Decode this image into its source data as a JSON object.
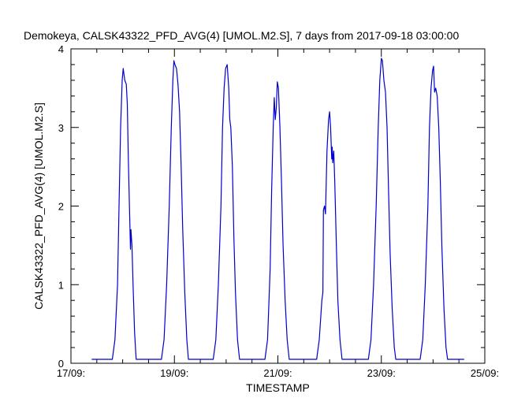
{
  "chart_data": {
    "type": "line",
    "title": "Demokeya, CALSK43322_PFD_AVG(4) [UMOL.M2.S], 7 days from  2017-09-18 03:00:00",
    "xlabel": "TIMESTAMP",
    "ylabel": "CALSK43322_PFD_AVG(4) [UMOL.M2.S]",
    "x_ticks": [
      {
        "day": 0,
        "label": "17/09:"
      },
      {
        "day": 2,
        "label": "19/09:"
      },
      {
        "day": 4,
        "label": "21/09:"
      },
      {
        "day": 6,
        "label": "23/09:"
      },
      {
        "day": 8,
        "label": "25/09:"
      }
    ],
    "x_minor_per_major": 4,
    "xlim": [
      0,
      8
    ],
    "ylim": [
      0,
      4
    ],
    "y_ticks": [
      0,
      1,
      2,
      3,
      4
    ],
    "y_minor_step": 0.2,
    "grid": false,
    "line_color": "#0000cc",
    "series": [
      {
        "points": [
          [
            0.4,
            0.05
          ],
          [
            0.8,
            0.05
          ],
          [
            0.85,
            0.3
          ],
          [
            0.9,
            1.0
          ],
          [
            0.93,
            2.0
          ],
          [
            0.96,
            3.0
          ],
          [
            0.99,
            3.6
          ],
          [
            1.01,
            3.75
          ],
          [
            1.04,
            3.6
          ],
          [
            1.07,
            3.55
          ],
          [
            1.09,
            3.3
          ],
          [
            1.11,
            2.6
          ],
          [
            1.13,
            2.0
          ],
          [
            1.15,
            1.45
          ],
          [
            1.16,
            1.7
          ],
          [
            1.18,
            1.5
          ],
          [
            1.2,
            1.0
          ],
          [
            1.23,
            0.4
          ],
          [
            1.26,
            0.05
          ],
          [
            1.75,
            0.05
          ],
          [
            1.8,
            0.3
          ],
          [
            1.85,
            1.0
          ],
          [
            1.9,
            2.0
          ],
          [
            1.94,
            3.0
          ],
          [
            1.97,
            3.6
          ],
          [
            1.99,
            3.85
          ],
          [
            2.01,
            3.8
          ],
          [
            2.04,
            3.75
          ],
          [
            2.07,
            3.55
          ],
          [
            2.1,
            3.2
          ],
          [
            2.13,
            2.5
          ],
          [
            2.16,
            1.7
          ],
          [
            2.2,
            0.9
          ],
          [
            2.24,
            0.3
          ],
          [
            2.27,
            0.05
          ],
          [
            2.75,
            0.05
          ],
          [
            2.8,
            0.3
          ],
          [
            2.85,
            1.0
          ],
          [
            2.9,
            2.0
          ],
          [
            2.93,
            3.0
          ],
          [
            2.96,
            3.5
          ],
          [
            2.99,
            3.75
          ],
          [
            3.02,
            3.8
          ],
          [
            3.05,
            3.5
          ],
          [
            3.07,
            3.1
          ],
          [
            3.09,
            3.0
          ],
          [
            3.12,
            2.5
          ],
          [
            3.15,
            1.6
          ],
          [
            3.18,
            0.9
          ],
          [
            3.22,
            0.3
          ],
          [
            3.26,
            0.05
          ],
          [
            3.75,
            0.05
          ],
          [
            3.8,
            0.3
          ],
          [
            3.85,
            1.2
          ],
          [
            3.88,
            2.2
          ],
          [
            3.91,
            3.0
          ],
          [
            3.93,
            3.38
          ],
          [
            3.95,
            3.1
          ],
          [
            3.97,
            3.25
          ],
          [
            3.99,
            3.58
          ],
          [
            4.01,
            3.5
          ],
          [
            4.04,
            3.0
          ],
          [
            4.07,
            2.3
          ],
          [
            4.1,
            1.5
          ],
          [
            4.14,
            0.8
          ],
          [
            4.18,
            0.3
          ],
          [
            4.22,
            0.05
          ],
          [
            4.75,
            0.05
          ],
          [
            4.8,
            0.3
          ],
          [
            4.85,
            0.8
          ],
          [
            4.87,
            0.9
          ],
          [
            4.88,
            1.95
          ],
          [
            4.9,
            2.0
          ],
          [
            4.92,
            1.9
          ],
          [
            4.95,
            2.7
          ],
          [
            4.98,
            3.1
          ],
          [
            5.0,
            3.2
          ],
          [
            5.02,
            3.0
          ],
          [
            5.04,
            2.6
          ],
          [
            5.05,
            2.75
          ],
          [
            5.06,
            2.55
          ],
          [
            5.08,
            2.7
          ],
          [
            5.1,
            2.3
          ],
          [
            5.13,
            1.5
          ],
          [
            5.16,
            0.8
          ],
          [
            5.2,
            0.3
          ],
          [
            5.24,
            0.05
          ],
          [
            5.75,
            0.05
          ],
          [
            5.8,
            0.3
          ],
          [
            5.85,
            1.0
          ],
          [
            5.9,
            2.0
          ],
          [
            5.94,
            3.0
          ],
          [
            5.97,
            3.6
          ],
          [
            6.0,
            3.88
          ],
          [
            6.02,
            3.85
          ],
          [
            6.05,
            3.6
          ],
          [
            6.08,
            3.45
          ],
          [
            6.11,
            3.0
          ],
          [
            6.14,
            2.2
          ],
          [
            6.17,
            1.4
          ],
          [
            6.21,
            0.7
          ],
          [
            6.25,
            0.2
          ],
          [
            6.28,
            0.05
          ],
          [
            6.75,
            0.05
          ],
          [
            6.8,
            0.3
          ],
          [
            6.85,
            1.0
          ],
          [
            6.9,
            2.0
          ],
          [
            6.93,
            3.0
          ],
          [
            6.96,
            3.5
          ],
          [
            6.99,
            3.72
          ],
          [
            7.01,
            3.78
          ],
          [
            7.03,
            3.45
          ],
          [
            7.05,
            3.5
          ],
          [
            7.08,
            3.4
          ],
          [
            7.11,
            3.0
          ],
          [
            7.14,
            2.3
          ],
          [
            7.17,
            1.5
          ],
          [
            7.21,
            0.7
          ],
          [
            7.25,
            0.2
          ],
          [
            7.28,
            0.05
          ],
          [
            7.6,
            0.05
          ]
        ]
      }
    ]
  }
}
